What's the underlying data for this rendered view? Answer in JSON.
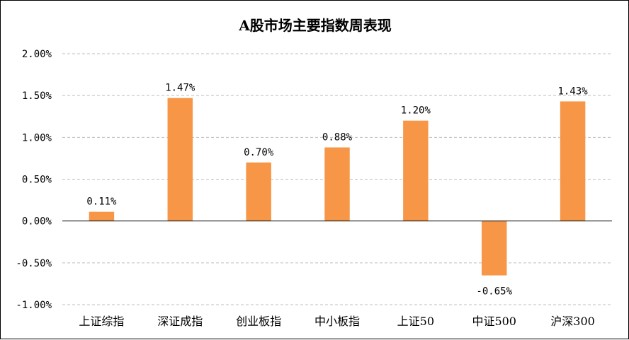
{
  "chart_data": {
    "type": "bar",
    "title": "A股市场主要指数周表现",
    "categories": [
      "上证综指",
      "深证成指",
      "创业板指",
      "中小板指",
      "上证50",
      "中证500",
      "沪深300"
    ],
    "values": [
      0.11,
      1.47,
      0.7,
      0.88,
      1.2,
      -0.65,
      1.43
    ],
    "data_labels": [
      "0.11%",
      "1.47%",
      "0.70%",
      "0.88%",
      "1.20%",
      "-0.65%",
      "1.43%"
    ],
    "ylim": [
      -1.0,
      2.0
    ],
    "yticks": [
      2.0,
      1.5,
      1.0,
      0.5,
      0.0,
      -0.5,
      -1.0
    ],
    "ytick_labels": [
      "2.00%",
      "1.50%",
      "1.00%",
      "0.50%",
      "0.00%",
      "-0.50%",
      "-1.00%"
    ],
    "xlabel": "",
    "ylabel": "",
    "grid": true,
    "colors": {
      "bar": "#F79646",
      "grid": "#BFBFBF",
      "axis": "#000000"
    }
  }
}
